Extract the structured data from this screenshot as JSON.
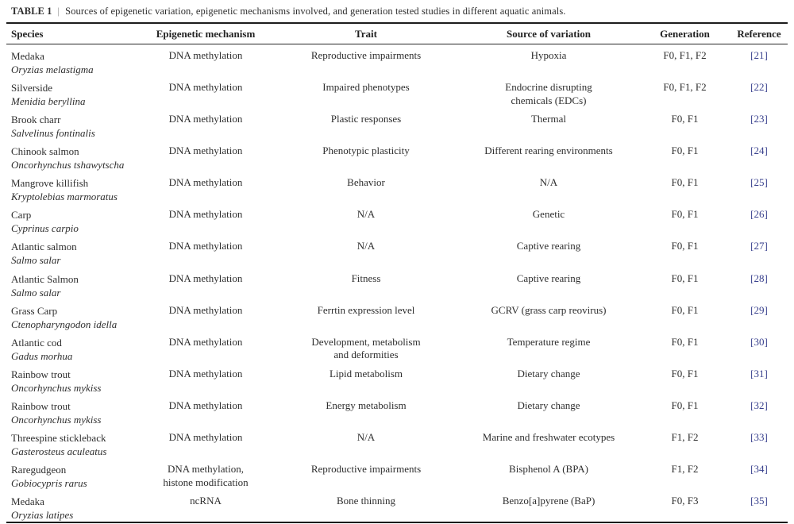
{
  "title": {
    "label": "TABLE 1",
    "separator": "|",
    "text": "Sources of epigenetic variation, epigenetic mechanisms involved, and generation tested studies in different aquatic animals."
  },
  "colors": {
    "text": "#2e2e2e",
    "reference_link": "#39418e",
    "rule": "#1c1c1c",
    "background": "#ffffff"
  },
  "table": {
    "headers": [
      "Species",
      "Epigenetic mechanism",
      "Trait",
      "Source of variation",
      "Generation",
      "Reference"
    ],
    "rows": [
      {
        "common_name": "Medaka",
        "scientific_name": "Oryzias melastigma",
        "mechanism": "DNA methylation",
        "trait": "Reproductive impairments",
        "source": "Hypoxia",
        "generation": "F0, F1, F2",
        "reference": "[21]"
      },
      {
        "common_name": "Silverside",
        "scientific_name": "Menidia beryllina",
        "mechanism": "DNA methylation",
        "trait": "Impaired phenotypes",
        "source": "Endocrine disrupting\nchemicals (EDCs)",
        "generation": "F0, F1, F2",
        "reference": "[22]"
      },
      {
        "common_name": "Brook charr",
        "scientific_name": "Salvelinus fontinalis",
        "mechanism": "DNA methylation",
        "trait": "Plastic responses",
        "source": "Thermal",
        "generation": "F0, F1",
        "reference": "[23]"
      },
      {
        "common_name": "Chinook salmon",
        "scientific_name": "Oncorhynchus tshawytscha",
        "mechanism": "DNA methylation",
        "trait": "Phenotypic plasticity",
        "source": "Different rearing environments",
        "generation": "F0, F1",
        "reference": "[24]"
      },
      {
        "common_name": "Mangrove killifish",
        "scientific_name": "Kryptolebias marmoratus",
        "mechanism": "DNA methylation",
        "trait": "Behavior",
        "source": "N/A",
        "generation": "F0, F1",
        "reference": "[25]"
      },
      {
        "common_name": "Carp",
        "scientific_name": "Cyprinus carpio",
        "mechanism": "DNA methylation",
        "trait": "N/A",
        "source": "Genetic",
        "generation": "F0, F1",
        "reference": "[26]"
      },
      {
        "common_name": "Atlantic salmon",
        "scientific_name": "Salmo salar",
        "mechanism": "DNA methylation",
        "trait": "N/A",
        "source": "Captive rearing",
        "generation": "F0, F1",
        "reference": "[27]"
      },
      {
        "common_name": "Atlantic Salmon",
        "scientific_name": "Salmo salar",
        "mechanism": "DNA methylation",
        "trait": "Fitness",
        "source": "Captive rearing",
        "generation": "F0, F1",
        "reference": "[28]"
      },
      {
        "common_name": "Grass Carp",
        "scientific_name": "Ctenopharyngodon idella",
        "mechanism": "DNA methylation",
        "trait": "Ferrtin expression level",
        "source": "GCRV (grass carp reovirus)",
        "generation": "F0, F1",
        "reference": "[29]"
      },
      {
        "common_name": "Atlantic cod",
        "scientific_name": "Gadus morhua",
        "mechanism": "DNA methylation",
        "trait": "Development, metabolism\nand deformities",
        "source": "Temperature regime",
        "generation": "F0, F1",
        "reference": "[30]"
      },
      {
        "common_name": "Rainbow trout",
        "scientific_name": "Oncorhynchus mykiss",
        "mechanism": "DNA methylation",
        "trait": "Lipid metabolism",
        "source": "Dietary change",
        "generation": "F0, F1",
        "reference": "[31]"
      },
      {
        "common_name": "Rainbow trout",
        "scientific_name": "Oncorhynchus mykiss",
        "mechanism": "DNA methylation",
        "trait": "Energy metabolism",
        "source": "Dietary change",
        "generation": "F0, F1",
        "reference": "[32]"
      },
      {
        "common_name": "Threespine stickleback",
        "scientific_name": "Gasterosteus aculeatus",
        "mechanism": "DNA methylation",
        "trait": "N/A",
        "source": "Marine and freshwater ecotypes",
        "generation": "F1, F2",
        "reference": "[33]"
      },
      {
        "common_name": "Raregudgeon",
        "scientific_name": "Gobiocypris rarus",
        "mechanism": "DNA methylation,\nhistone modification",
        "trait": "Reproductive impairments",
        "source": "Bisphenol A (BPA)",
        "generation": "F1, F2",
        "reference": "[34]"
      },
      {
        "common_name": "Medaka",
        "scientific_name": "Oryzias latipes",
        "mechanism": "ncRNA",
        "trait": "Bone thinning",
        "source": "Benzo[a]pyrene (BaP)",
        "generation": "F0, F3",
        "reference": "[35]"
      }
    ]
  }
}
